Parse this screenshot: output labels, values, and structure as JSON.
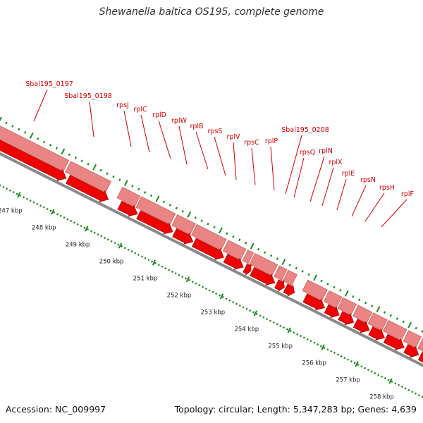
{
  "title": "Shewanella baltica OS195, complete genome",
  "footer": {
    "accession": "Accession: NC_009997",
    "summary": "Topology: circular; Length: 5,347,283 bp; Genes: 4,639"
  },
  "colors": {
    "gene_label": "#cc0000",
    "leader": "#cc0000",
    "gene_fill": "#ee0000",
    "gene_edge": "#aa0000",
    "cds_fill": "#e98585",
    "cds_edge": "#c86666",
    "backbone": "#8a8a8a",
    "tick": "#1d8a1d",
    "kbp_label": "#222222"
  },
  "scale": {
    "labels": [
      "247 kbp",
      "248 kbp",
      "249 kbp",
      "250 kbp",
      "251 kbp",
      "252 kbp",
      "253 kbp",
      "254 kbp",
      "255 kbp",
      "256 kbp",
      "257 kbp",
      "258 kbp"
    ]
  },
  "genes": [
    "Sbal195_0197",
    "Sbal195_0198",
    "rpsJ",
    "rplC",
    "rplD",
    "rplW",
    "rplB",
    "rpsS",
    "rplV",
    "rpsC",
    "rplP",
    "Sbal195_0208",
    "rpsQ",
    "rplN",
    "rplX",
    "rplE",
    "rpsN",
    "rpsH",
    "rplF"
  ]
}
